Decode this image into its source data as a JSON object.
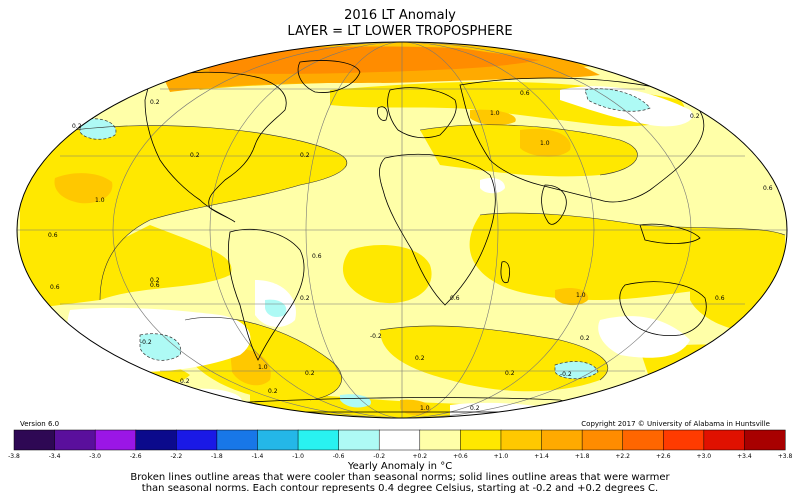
{
  "title": "2016 LT Anomaly",
  "subtitle": "LAYER = LT LOWER TROPOSPHERE",
  "version": "Version 6.0",
  "copyright": "Copyright 2017 © University of Alabama in Huntsville",
  "colorbar": {
    "label": "Yearly Anomaly in °C",
    "ticks": [
      "-3.8",
      "-3.4",
      "-3.0",
      "-2.6",
      "-2.2",
      "-1.8",
      "-1.4",
      "-1.0",
      "-0.6",
      "-0.2",
      "+0.2",
      "+0.6",
      "+1.0",
      "+1.4",
      "+1.8",
      "+2.2",
      "+2.6",
      "+3.0",
      "+3.4",
      "+3.8"
    ],
    "colors": [
      "#2e0854",
      "#5a0f9c",
      "#9b16e6",
      "#0b0a8c",
      "#1a19e6",
      "#1877e8",
      "#24b7e8",
      "#29f2f0",
      "#aefaf5",
      "#ffffff",
      "#ffffa8",
      "#ffe800",
      "#ffc800",
      "#ffaa00",
      "#ff8c00",
      "#ff6600",
      "#ff3b00",
      "#e01100",
      "#a80000"
    ]
  },
  "note_line1": "Broken lines outline areas that were cooler than seasonal norms; solid lines outline areas that were warmer",
  "note_line2": "than seasonal norms. Each contour represents 0.4 degree Celsius, starting at -0.2 and +0.2 degrees C.",
  "map_data": {
    "projection": "Mollweide",
    "contour_labels": [
      "0.2",
      "0.2",
      "0.2",
      "0.2",
      "0.2",
      "0.2",
      "0.2",
      "0.2",
      "0.2",
      "0.2",
      "0.2",
      "0.2",
      "0.2",
      "0.6",
      "0.6",
      "0.6",
      "0.6",
      "0.6",
      "0.6",
      "0.6",
      "0.6",
      "1.0",
      "1.0",
      "1.0",
      "1.0",
      "1.0",
      "1.0",
      "0.2",
      "-0.2",
      "-0.2",
      "-0.2"
    ]
  }
}
